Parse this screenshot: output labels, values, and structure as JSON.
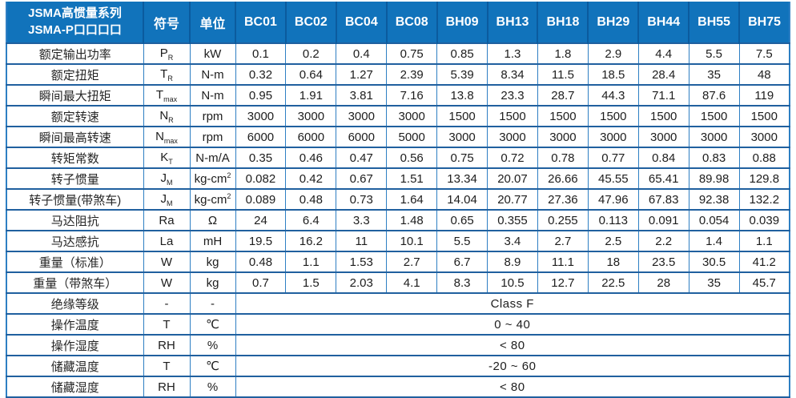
{
  "colors": {
    "header_bg": "#1173bb",
    "header_divider": "#0b5b9e",
    "grid_vertical": "#2e7fc3",
    "grid_horizontal": "#20609f",
    "header_text": "#ffffff",
    "cell_text": "#1d1d1d"
  },
  "header": {
    "title_line1": "JSMA高惯量系列",
    "title_line2": "JSMA-P口口口口",
    "symbol_col": "符号",
    "unit_col": "单位",
    "models": [
      "BC01",
      "BC02",
      "BC04",
      "BC08",
      "BH09",
      "BH13",
      "BH18",
      "BH29",
      "BH44",
      "BH55",
      "BH75"
    ]
  },
  "spec_rows": [
    {
      "label": "额定输出功率",
      "symbol": {
        "base": "P",
        "sub": "R"
      },
      "unit": "kW",
      "values": [
        "0.1",
        "0.2",
        "0.4",
        "0.75",
        "0.85",
        "1.3",
        "1.8",
        "2.9",
        "4.4",
        "5.5",
        "7.5"
      ]
    },
    {
      "label": "额定扭矩",
      "symbol": {
        "base": "T",
        "sub": "R"
      },
      "unit": "N-m",
      "values": [
        "0.32",
        "0.64",
        "1.27",
        "2.39",
        "5.39",
        "8.34",
        "11.5",
        "18.5",
        "28.4",
        "35",
        "48"
      ]
    },
    {
      "label": "瞬间最大扭矩",
      "symbol": {
        "base": "T",
        "sub": "max"
      },
      "unit": "N-m",
      "values": [
        "0.95",
        "1.91",
        "3.81",
        "7.16",
        "13.8",
        "23.3",
        "28.7",
        "44.3",
        "71.1",
        "87.6",
        "119"
      ]
    },
    {
      "label": "额定转速",
      "symbol": {
        "base": "N",
        "sub": "R"
      },
      "unit": "rpm",
      "values": [
        "3000",
        "3000",
        "3000",
        "3000",
        "1500",
        "1500",
        "1500",
        "1500",
        "1500",
        "1500",
        "1500"
      ]
    },
    {
      "label": "瞬间最高转速",
      "symbol": {
        "base": "N",
        "sub": "max"
      },
      "unit": "rpm",
      "values": [
        "6000",
        "6000",
        "6000",
        "5000",
        "3000",
        "3000",
        "3000",
        "3000",
        "3000",
        "3000",
        "3000"
      ]
    },
    {
      "label": "转矩常数",
      "symbol": {
        "base": "K",
        "sub": "T"
      },
      "unit": "N-m/A",
      "values": [
        "0.35",
        "0.46",
        "0.47",
        "0.56",
        "0.75",
        "0.72",
        "0.78",
        "0.77",
        "0.84",
        "0.83",
        "0.88"
      ]
    },
    {
      "label": "转子惯量",
      "symbol": {
        "base": "J",
        "sub": "M"
      },
      "unit": "kg-cm²",
      "values": [
        "0.082",
        "0.42",
        "0.67",
        "1.51",
        "13.34",
        "20.07",
        "26.66",
        "45.55",
        "65.41",
        "89.98",
        "129.8"
      ]
    },
    {
      "label": "转子惯量(带煞车)",
      "symbol": {
        "base": "J",
        "sub": "M"
      },
      "unit": "kg-cm²",
      "values": [
        "0.089",
        "0.48",
        "0.73",
        "1.64",
        "14.04",
        "20.77",
        "27.36",
        "47.96",
        "67.83",
        "92.38",
        "132.2"
      ]
    },
    {
      "label": "马达阻抗",
      "symbol": {
        "base": "Ra",
        "sub": ""
      },
      "unit": "Ω",
      "values": [
        "24",
        "6.4",
        "3.3",
        "1.48",
        "0.65",
        "0.355",
        "0.255",
        "0.113",
        "0.091",
        "0.054",
        "0.039"
      ]
    },
    {
      "label": "马达感抗",
      "symbol": {
        "base": "La",
        "sub": ""
      },
      "unit": "mH",
      "values": [
        "19.5",
        "16.2",
        "11",
        "10.1",
        "5.5",
        "3.4",
        "2.7",
        "2.5",
        "2.2",
        "1.4",
        "1.1"
      ]
    },
    {
      "label": "重量（标准）",
      "symbol": {
        "base": "W",
        "sub": ""
      },
      "unit": "kg",
      "values": [
        "0.48",
        "1.1",
        "1.53",
        "2.7",
        "6.7",
        "8.9",
        "11.1",
        "18",
        "23.5",
        "30.5",
        "41.2"
      ]
    },
    {
      "label": "重量（带煞车）",
      "symbol": {
        "base": "W",
        "sub": ""
      },
      "unit": "kg",
      "values": [
        "0.7",
        "1.5",
        "2.03",
        "4.1",
        "8.3",
        "10.5",
        "12.7",
        "22.5",
        "28",
        "35",
        "45.7"
      ]
    }
  ],
  "env_rows": [
    {
      "label": "绝缘等级",
      "symbol": "-",
      "unit": "-",
      "value": "Class F"
    },
    {
      "label": "操作温度",
      "symbol": "T",
      "unit": "℃",
      "value": "0 ~ 40"
    },
    {
      "label": "操作湿度",
      "symbol": "RH",
      "unit": "%",
      "value": "< 80"
    },
    {
      "label": "储藏温度",
      "symbol": "T",
      "unit": "℃",
      "value": "-20 ~ 60"
    },
    {
      "label": "储藏湿度",
      "symbol": "RH",
      "unit": "%",
      "value": "< 80"
    }
  ]
}
